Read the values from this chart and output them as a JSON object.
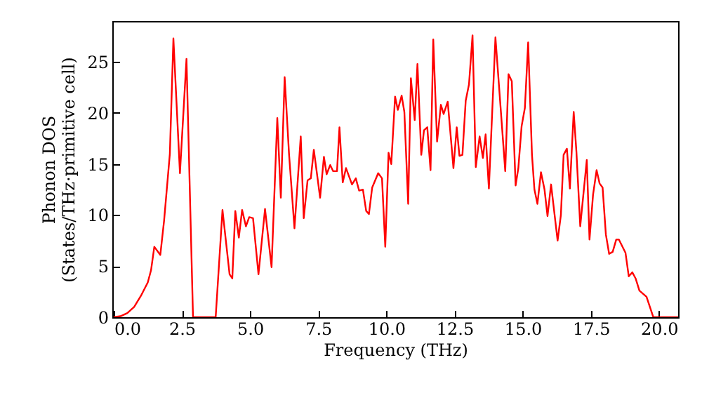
{
  "chart_data": {
    "type": "line",
    "xlabel": "Frequency (THz)",
    "ylabel": "Phonon DOS\n(States/THz·primitive cell)",
    "xlim": [
      -0.05,
      20.7
    ],
    "ylim": [
      0,
      29
    ],
    "xticks": [
      {
        "value": 0,
        "label": "0.0"
      },
      {
        "value": 2.5,
        "label": "2.5"
      },
      {
        "value": 5,
        "label": "5.0"
      },
      {
        "value": 7.5,
        "label": "7.5"
      },
      {
        "value": 10,
        "label": "10.0"
      },
      {
        "value": 12.5,
        "label": "12.5"
      },
      {
        "value": 15,
        "label": "15.0"
      },
      {
        "value": 17.5,
        "label": "17.5"
      },
      {
        "value": 20,
        "label": "20.0"
      }
    ],
    "yticks": [
      0,
      5,
      10,
      15,
      20,
      25
    ],
    "grid": false,
    "line_style": "solid",
    "series": [
      {
        "color": "#ff0000",
        "x": [
          0,
          0.25,
          0.5,
          0.75,
          1.0,
          1.25,
          1.37,
          1.49,
          1.71,
          1.85,
          2.06,
          2.19,
          2.43,
          2.67,
          2.91,
          3.74,
          3.99,
          4.25,
          4.35,
          4.46,
          4.59,
          4.71,
          4.85,
          4.97,
          5.11,
          5.31,
          5.55,
          5.79,
          6.0,
          6.13,
          6.27,
          6.43,
          6.63,
          6.86,
          6.97,
          7.11,
          7.23,
          7.34,
          7.57,
          7.71,
          7.81,
          7.94,
          8.05,
          8.19,
          8.28,
          8.4,
          8.52,
          8.74,
          8.88,
          9.0,
          9.14,
          9.26,
          9.36,
          9.48,
          9.7,
          9.84,
          9.96,
          10.08,
          10.18,
          10.32,
          10.42,
          10.56,
          10.66,
          10.8,
          10.9,
          11.04,
          11.14,
          11.28,
          11.38,
          11.5,
          11.62,
          11.72,
          11.86,
          12.0,
          12.1,
          12.25,
          12.46,
          12.58,
          12.68,
          12.79,
          12.91,
          13.03,
          13.16,
          13.28,
          13.42,
          13.54,
          13.64,
          13.76,
          14.0,
          14.19,
          14.36,
          14.48,
          14.6,
          14.74,
          14.84,
          14.96,
          15.08,
          15.2,
          15.34,
          15.43,
          15.54,
          15.67,
          15.8,
          15.91,
          16.04,
          16.28,
          16.4,
          16.5,
          16.62,
          16.73,
          16.87,
          16.97,
          17.11,
          17.35,
          17.45,
          17.58,
          17.71,
          17.82,
          17.93,
          18.05,
          18.17,
          18.3,
          18.43,
          18.53,
          18.77,
          18.89,
          19.02,
          19.14,
          19.28,
          19.54,
          19.79,
          20.7
        ],
        "values": [
          0,
          0.1,
          0.4,
          1.0,
          2.1,
          3.4,
          4.6,
          6.9,
          6.1,
          9.5,
          16.0,
          27.3,
          14.1,
          25.3,
          0,
          0,
          10.5,
          4.2,
          3.8,
          10.4,
          7.8,
          10.5,
          8.9,
          9.8,
          9.7,
          4.2,
          10.6,
          4.9,
          19.5,
          11.7,
          23.5,
          16.0,
          8.7,
          17.7,
          9.7,
          13.4,
          13.6,
          16.4,
          11.7,
          15.7,
          14.0,
          14.9,
          14.3,
          14.3,
          18.6,
          13.2,
          14.6,
          13.0,
          13.6,
          12.4,
          12.5,
          10.4,
          10.1,
          12.7,
          14.1,
          13.6,
          6.9,
          16.1,
          15.0,
          21.6,
          20.3,
          21.7,
          20.1,
          11.1,
          23.4,
          19.3,
          24.8,
          15.9,
          18.3,
          18.6,
          14.4,
          27.2,
          17.2,
          20.8,
          19.9,
          21.1,
          14.6,
          18.6,
          15.8,
          15.9,
          21.2,
          22.8,
          27.6,
          14.7,
          17.7,
          15.6,
          17.9,
          12.6,
          27.4,
          20.5,
          14.3,
          23.8,
          23.1,
          12.9,
          14.6,
          18.7,
          20.5,
          26.9,
          15.9,
          12.5,
          11.1,
          14.2,
          12.5,
          9.9,
          13.0,
          7.5,
          10.0,
          15.9,
          16.5,
          12.6,
          20.1,
          16.2,
          8.9,
          15.4,
          7.6,
          12.0,
          14.4,
          13.1,
          12.7,
          8.1,
          6.2,
          6.4,
          7.6,
          7.6,
          6.3,
          4.0,
          4.4,
          3.8,
          2.6,
          2.0,
          0,
          0
        ]
      }
    ]
  }
}
